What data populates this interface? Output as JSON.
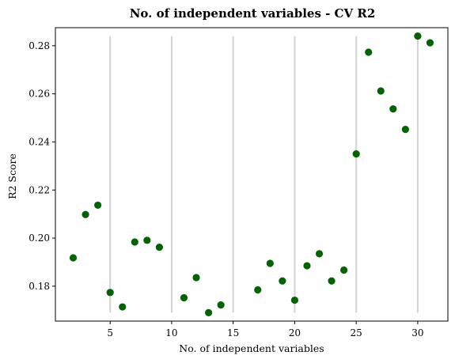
{
  "chart_data": {
    "type": "scatter",
    "title": "No. of independent variables - CV R2",
    "xlabel": "No. of independent variables",
    "ylabel": "R2 Score",
    "xlim": [
      0.55,
      32.45
    ],
    "ylim": [
      0.1655,
      0.2875
    ],
    "xticks": [
      5,
      10,
      15,
      20,
      25,
      30
    ],
    "yticks": [
      0.18,
      0.2,
      0.22,
      0.24,
      0.26,
      0.28
    ],
    "ytick_labels": [
      "0.18",
      "0.20",
      "0.22",
      "0.24",
      "0.26",
      "0.28"
    ],
    "vlines": {
      "x": [
        5,
        10,
        15,
        20,
        25,
        30
      ],
      "ymin": 0.169,
      "ymax": 0.284,
      "color": "#d3d3d3"
    },
    "grid": false,
    "marker_color": "#006400",
    "series": [
      {
        "x": [
          2,
          3,
          4,
          5,
          6,
          7,
          8,
          9,
          11,
          12,
          13,
          14,
          17,
          18,
          19,
          20,
          21,
          22,
          23,
          24,
          25,
          26,
          27,
          28,
          29,
          30,
          31
        ],
        "y": [
          0.1918,
          0.2098,
          0.2137,
          0.1774,
          0.1714,
          0.1984,
          0.1991,
          0.1962,
          0.1752,
          0.1836,
          0.169,
          0.1722,
          0.1785,
          0.1895,
          0.1822,
          0.1742,
          0.1885,
          0.1935,
          0.1822,
          0.1867,
          0.235,
          0.2773,
          0.2612,
          0.2537,
          0.2452,
          0.284,
          0.2812
        ]
      }
    ]
  }
}
